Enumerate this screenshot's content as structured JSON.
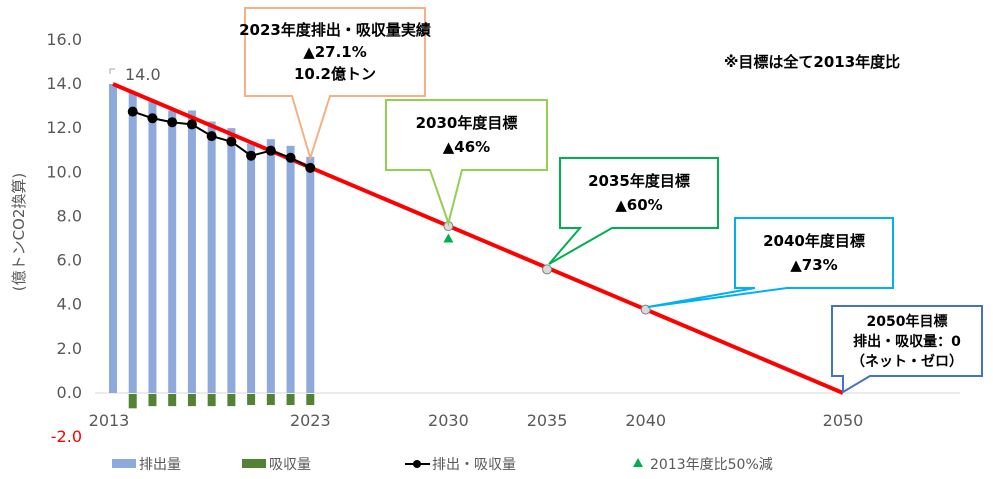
{
  "chart_data": {
    "type": "bar",
    "ylabel": "(億トンCO2換算)",
    "ylim": [
      -2.0,
      16.0
    ],
    "yticks": [
      "-2.0",
      "0.0",
      "2.0",
      "4.0",
      "6.0",
      "8.0",
      "10.0",
      "12.0",
      "14.0",
      "16.0"
    ],
    "xticks": [
      "2013",
      "2023",
      "2030",
      "2035",
      "2040",
      "2050"
    ],
    "xlim": [
      2013,
      2050
    ],
    "years": [
      2013,
      2014,
      2015,
      2016,
      2017,
      2018,
      2019,
      2020,
      2021,
      2022,
      2023
    ],
    "series": [
      {
        "name": "排出量",
        "type": "bar",
        "color": "#8EA9DB",
        "values": [
          14.0,
          13.6,
          13.2,
          12.8,
          12.8,
          12.3,
          12.0,
          11.3,
          11.5,
          11.2,
          10.7
        ]
      },
      {
        "name": "吸収量",
        "type": "bar",
        "color": "#548235",
        "values": [
          0,
          -0.65,
          -0.55,
          -0.55,
          -0.55,
          -0.55,
          -0.55,
          -0.5,
          -0.5,
          -0.5,
          -0.5
        ]
      },
      {
        "name": "排出・吸収量",
        "type": "line",
        "color": "#000000",
        "values": [
          null,
          12.75,
          12.45,
          12.27,
          12.17,
          11.64,
          11.39,
          10.75,
          10.98,
          10.66,
          10.2
        ]
      },
      {
        "name": "2013年度比50%減",
        "type": "scatter",
        "color": "#00B050",
        "points": [
          [
            2030,
            7.0
          ]
        ]
      }
    ],
    "target_line": {
      "color": "#FF0000",
      "points": [
        [
          2013,
          14.0
        ],
        [
          2030,
          7.56
        ],
        [
          2035,
          5.6
        ],
        [
          2040,
          3.78
        ],
        [
          2050,
          0
        ]
      ]
    },
    "data_label": "14.0",
    "note": "※目標は全て2013年度比",
    "callouts": [
      {
        "lines": [
          "2023年度排出・吸収量実績",
          "▲27.1%",
          "10.2億トン"
        ],
        "color": "#F4B183"
      },
      {
        "lines": [
          "2030年度目標",
          "▲46%"
        ],
        "color": "#92D050"
      },
      {
        "lines": [
          "2035年度目標",
          "▲60%"
        ],
        "color": "#00B050"
      },
      {
        "lines": [
          "2040年度目標",
          "▲73%"
        ],
        "color": "#00B0F0"
      },
      {
        "lines": [
          "2050年目標",
          "排出・吸収量：0",
          "（ネット・ゼロ）"
        ],
        "color": "#4472C4"
      }
    ],
    "legend": [
      "排出量",
      "吸収量",
      "排出・吸収量",
      "2013年度比50%減"
    ],
    "legend_position": "bottom"
  }
}
